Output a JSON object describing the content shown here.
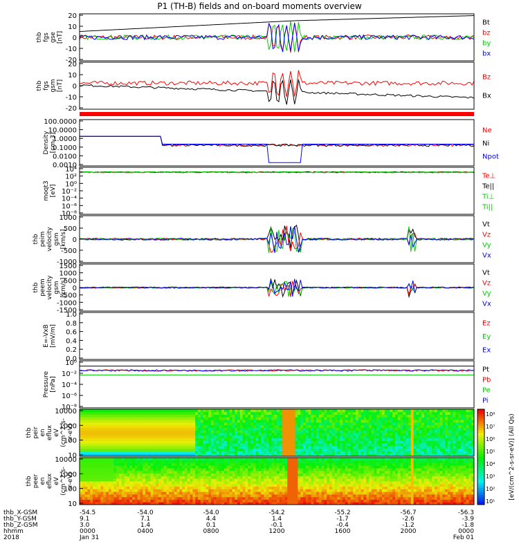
{
  "chart_data": {
    "type": "line",
    "title": "P1 (TH-B) fields and on-board moments overview",
    "panels": [
      {
        "id": "fgs_gse",
        "ylabel": [
          "thb",
          "fgs",
          "gse",
          "[nT]"
        ],
        "yticks": [
          "20",
          "10",
          "0",
          "-10",
          "-20"
        ],
        "ylim": [
          -20,
          20
        ],
        "series": [
          {
            "name": "Bt",
            "color": "#000000"
          },
          {
            "name": "bz",
            "color": "#ff0000"
          },
          {
            "name": "by",
            "color": "#00cc00"
          },
          {
            "name": "bx",
            "color": "#0000ff"
          }
        ]
      },
      {
        "id": "fgs_gsm",
        "ylabel": [
          "thb",
          "fgs",
          "gsm",
          "[nT]"
        ],
        "yticks": [
          "20",
          "10",
          "0",
          "-10",
          "-20"
        ],
        "ylim": [
          -25,
          20
        ],
        "series": [
          {
            "name": "Bz",
            "color": "#ff0000"
          },
          {
            "name": "Bx",
            "color": "#000000"
          }
        ]
      },
      {
        "id": "density",
        "ylabel": [
          "Density",
          "[cm-3]"
        ],
        "yticks": [
          "100.0000",
          "10.0000",
          "1.0000",
          "0.1000",
          "0.0100",
          "0.0010"
        ],
        "log": true,
        "ylim": [
          0.0003,
          300
        ],
        "series": [
          {
            "name": "Ne",
            "color": "#ff0000"
          },
          {
            "name": "Ni",
            "color": "#000000"
          },
          {
            "name": "Npot",
            "color": "#0000ff"
          }
        ]
      },
      {
        "id": "temperature",
        "ylabel": [
          "moqt3",
          "[eV]"
        ],
        "yticks": [
          "10⁴",
          "10²",
          "10⁰",
          "10⁻²",
          "10⁻⁴",
          "10⁻⁶",
          "10⁻⁸"
        ],
        "log": true,
        "ylim": [
          1e-09,
          10000
        ],
        "series": [
          {
            "name": "Te⊥",
            "color": "#ff0000"
          },
          {
            "name": "Te||",
            "color": "#000000"
          },
          {
            "name": "Ti⊥",
            "color": "#00cc00"
          },
          {
            "name": "Ti||",
            "color": "#00cc00"
          }
        ]
      },
      {
        "id": "ion_velocity",
        "ylabel": [
          "thb",
          "peim",
          "velocity",
          "gsm",
          "[km/s]"
        ],
        "yticks": [
          "1000",
          "500",
          "0",
          "-500",
          "-1000"
        ],
        "ylim": [
          -1000,
          1000
        ],
        "series": [
          {
            "name": "Vt",
            "color": "#000000"
          },
          {
            "name": "Vz",
            "color": "#ff0000"
          },
          {
            "name": "Vy",
            "color": "#00cc00"
          },
          {
            "name": "Vx",
            "color": "#0000ff"
          }
        ]
      },
      {
        "id": "electron_velocity",
        "ylabel": [
          "thb",
          "peem",
          "velocity",
          "gsm",
          "[km/s]"
        ],
        "yticks": [
          "1500",
          "1000",
          "500",
          "0",
          "-500",
          "-1000",
          "-1500"
        ],
        "ylim": [
          -1500,
          1500
        ],
        "series": [
          {
            "name": "Vt",
            "color": "#000000"
          },
          {
            "name": "Vz",
            "color": "#ff0000"
          },
          {
            "name": "Vy",
            "color": "#00cc00"
          },
          {
            "name": "Vx",
            "color": "#0000ff"
          }
        ]
      },
      {
        "id": "efield",
        "ylabel": [
          "E=-VxB",
          "[mV/m]"
        ],
        "yticks": [
          "1.0",
          "0.8",
          "0.6",
          "0.4",
          "0.2",
          "0.0"
        ],
        "ylim": [
          0,
          1
        ],
        "series": [
          {
            "name": "Ez",
            "color": "#ff0000"
          },
          {
            "name": "Ey",
            "color": "#00cc00"
          },
          {
            "name": "Ex",
            "color": "#0000ff"
          }
        ]
      },
      {
        "id": "pressure",
        "ylabel": [
          "Pressure",
          "[nPa]"
        ],
        "yticks": [
          "10⁰",
          "10⁻²",
          "10⁻⁴",
          "10⁻⁶",
          "10⁻⁸"
        ],
        "log": true,
        "ylim": [
          1e-09,
          1
        ],
        "series": [
          {
            "name": "Pt",
            "color": "#000000"
          },
          {
            "name": "Pb",
            "color": "#ff0000"
          },
          {
            "name": "Pe",
            "color": "#00cc00"
          },
          {
            "name": "Pi",
            "color": "#0000ff"
          }
        ]
      },
      {
        "id": "ion_spectrogram",
        "type": "heatmap",
        "ylabel": [
          "thb",
          "peir",
          "en",
          "eflux",
          "eV",
          "(cm^2-s-",
          "sr-eV)"
        ],
        "yticks": [
          "10000",
          "1000",
          "100",
          "10"
        ],
        "log": true,
        "ylim": [
          5,
          25000
        ]
      },
      {
        "id": "electron_spectrogram",
        "type": "heatmap",
        "ylabel": [
          "thb",
          "peer",
          "en",
          "eflux",
          "eV",
          "(cm^2-s-",
          "sr-eV)"
        ],
        "yticks": [
          "10000",
          "1000",
          "100",
          "10"
        ],
        "log": true,
        "ylim": [
          5,
          25000
        ]
      }
    ],
    "colorbar": {
      "label": "[eV/(cm^2-s-sr-eV)] (All Qs)",
      "ticks": [
        "10⁸",
        "10⁷",
        "10⁶",
        "10⁵",
        "10⁴",
        "10³",
        "10²",
        "10¹"
      ]
    },
    "x_axis": {
      "row_labels": [
        "thb_X-GSM",
        "thb_Y-GSM",
        "thb_Z-GSM",
        "hhmm",
        "2018"
      ],
      "columns": [
        {
          "x": [
            "-54.5",
            "9.1",
            "3.0",
            "0000",
            "Jan 31"
          ]
        },
        {
          "x": [
            "-54.0",
            "7.1",
            "1.4",
            "0400",
            ""
          ]
        },
        {
          "x": [
            "-54.0",
            "4.4",
            "0.1",
            "0800",
            ""
          ]
        },
        {
          "x": [
            "-54.2",
            "1.4",
            "-0.1",
            "1200",
            ""
          ]
        },
        {
          "x": [
            "-55.2",
            "-1.7",
            "-0.4",
            "1600",
            ""
          ]
        },
        {
          "x": [
            "-56.7",
            "-2.6",
            "-1.2",
            "2000",
            ""
          ]
        },
        {
          "x": [
            "-56.3",
            "-3.9",
            "-1.8",
            "0000",
            "Feb 01"
          ]
        }
      ],
      "hours": [
        0,
        4,
        8,
        12,
        16,
        20,
        24
      ],
      "xlim": [
        0,
        24
      ]
    },
    "status_bar_color": "#ff0000"
  }
}
